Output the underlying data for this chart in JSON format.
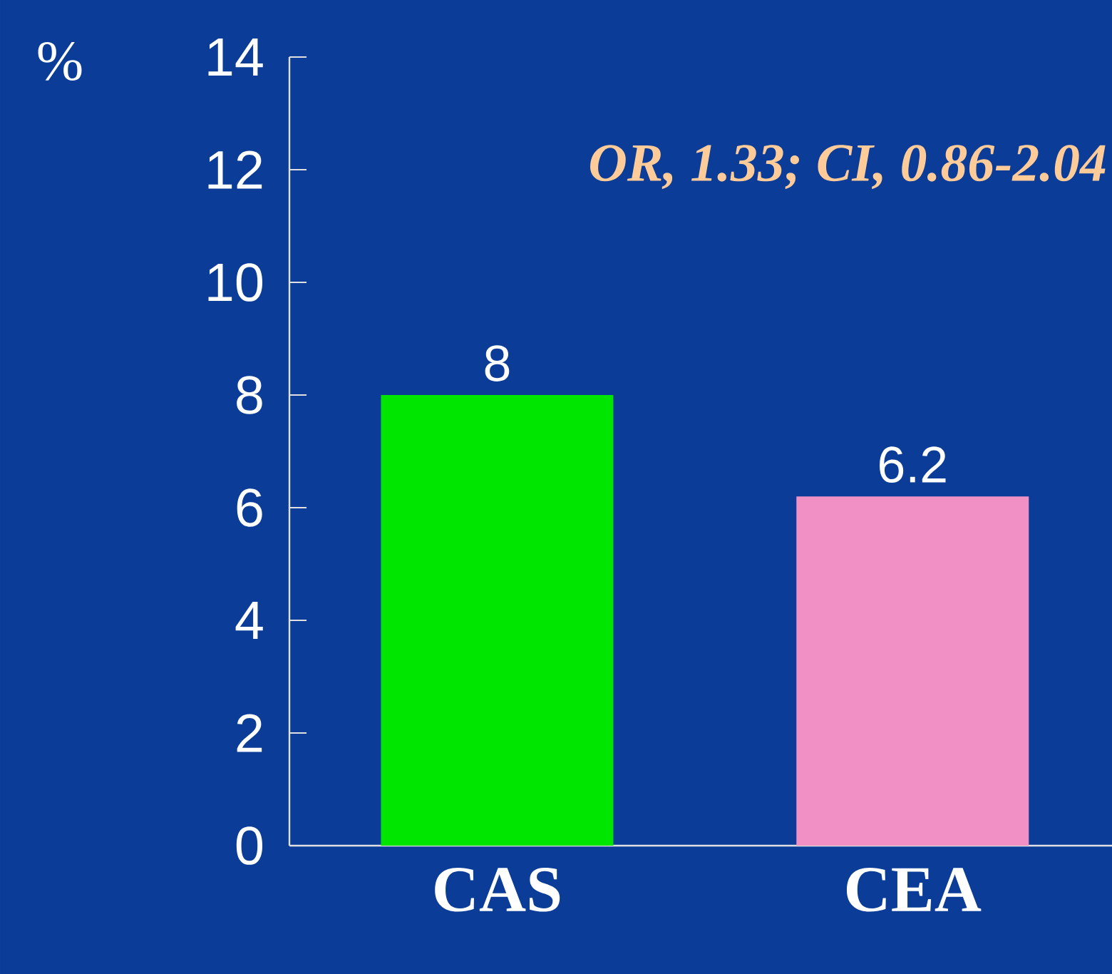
{
  "chart_data": {
    "type": "bar",
    "ylabel": "%",
    "categories": [
      "CAS",
      "CEA"
    ],
    "values": [
      8,
      6.2
    ],
    "colors": [
      "#00e600",
      "#f090c4"
    ],
    "ylim": [
      0,
      14
    ],
    "yticks": [
      0,
      2,
      4,
      6,
      8,
      10,
      12,
      14
    ],
    "data_labels": true,
    "grid": false,
    "annotations": [
      "*OR, 1.33; CI, 0.86-2.04*"
    ]
  }
}
